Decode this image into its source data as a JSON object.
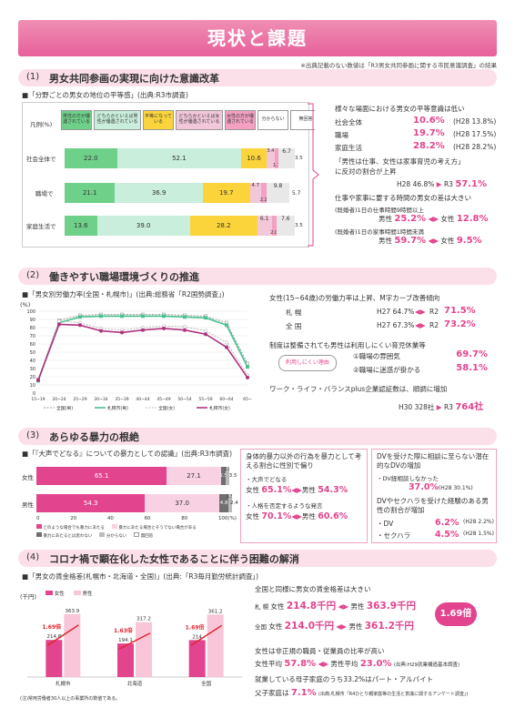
{
  "banner": "現状と課題",
  "source_note": "※出典記載のない数値は「R3男女共同参画に関する市民意識調査」の結果",
  "sec1": {
    "num": "(1)",
    "title": "男女共同参画の実現に向けた意識改革",
    "subtitle": "■「分野ごとの男女の地位の平等感」(出典:R3市調査)",
    "legend_label": "凡例(%)",
    "legend": [
      "男性の方が優遇されている",
      "どちらかといえば男性が優遇されている",
      "平等になっている",
      "どちらかといえば女性が優遇されている",
      "女性の方が優遇されている",
      "分からない",
      "無回答"
    ],
    "rows": [
      {
        "label": "社会全体で",
        "values": [
          "22.0",
          "52.1",
          "10.6",
          "3.4",
          "6.7",
          "1.7",
          "3.5"
        ]
      },
      {
        "label": "職場で",
        "values": [
          "21.1",
          "36.9",
          "19.7",
          "4.7",
          "9.8",
          "2.2",
          "5.7"
        ]
      },
      {
        "label": "家庭生活で",
        "values": [
          "13.6",
          "39.0",
          "28.2",
          "6.1",
          "7.6",
          "2.0",
          "3.5"
        ]
      }
    ],
    "side": {
      "h1": "様々な場面における男女の平等意識は低い",
      "items": [
        {
          "k": "社会全体",
          "v": "10.6%",
          "p": "(H28 13.8%)"
        },
        {
          "k": "職場",
          "v": "19.7%",
          "p": "(H28 17.5%)"
        },
        {
          "k": "家庭生活",
          "v": "28.2%",
          "p": "(H28 28.2%)"
        }
      ],
      "h2a": "「男性は仕事、女性は家事育児の考え方」",
      "h2b": "に反対の割合が上昇",
      "cmp": "H28 46.8%",
      "arrow": "▶",
      "r3": "R3",
      "r3v": "57.1%",
      "h3": "仕事や家事に要する時間の男女の差は大きい",
      "n1": "(既婚者)1日の仕事時間9時間以上",
      "m1": "男性",
      "mv1": "25.2%",
      "w1": "女性",
      "wv1": "12.8%",
      "n2": "(既婚者)1日の家事時間1時間未満",
      "m2": "男性",
      "mv2": "59.7%",
      "w2": "女性",
      "wv2": "9.5%"
    }
  },
  "sec2": {
    "num": "(2)",
    "title": "働きやすい職場環境づくりの推進",
    "subtitle": "■「男女別労働力率(全国・札幌市)」(出典:総務省「R2国勢調査」)",
    "unit": "(%)",
    "side": {
      "h1": "女性(15~64歳)の労働力率は上昇、M字カーブ改善傾向",
      "r1k": "札 幌",
      "r1a": "H27 64.7%",
      "r1b": "R2",
      "r1v": "71.5%",
      "r2k": "全 国",
      "r2a": "H27 67.3%",
      "r2b": "R2",
      "r2v": "73.2%",
      "h2": "制度は整備されても男性は利用しにくい育児休業等",
      "reason": "利用しにくい理由",
      "i1": "①職場の雰囲気",
      "v1": "69.7%",
      "i2": "②職場に迷惑が掛かる",
      "v2": "58.1%",
      "h3": "ワーク・ライフ・バランスplus企業認証数は、順調に増加",
      "r3a": "H30 328社",
      "r3b": "R3",
      "r3v": "764社"
    }
  },
  "sec3": {
    "num": "(3)",
    "title": "あらゆる暴力の根絶",
    "subtitle": "■「『大声でどなる』についての暴力としての認識」(出典:R3市調査)",
    "rows": [
      {
        "label": "女性",
        "values": [
          "65.1",
          "27.1",
          "2.5",
          "1.8",
          "3.5"
        ]
      },
      {
        "label": "男性",
        "values": [
          "54.3",
          "37.0",
          "4.8",
          "1.5",
          "2.4"
        ]
      }
    ],
    "ticks": [
      "0",
      "20",
      "40",
      "60",
      "80",
      "100(%)"
    ],
    "legend": [
      "どのような場合でも暴力にあたる",
      "暴力にあたる場合とそうでない場合がある",
      "暴力にあたるとは思わない",
      "分からない",
      "無回答"
    ],
    "side1": {
      "h": "身体的暴力以外の行為を暴力として考える割合に性別で偏り",
      "a": "・大声でどなる",
      "a1": "女性",
      "a1v": "65.1%",
      "a2": "男性",
      "a2v": "54.3%",
      "b": "・人格を否定するような発言",
      "b1": "女性",
      "b1v": "70.1%",
      "b2": "男性",
      "b2v": "60.6%"
    },
    "side2": {
      "h": "DVを受けた際に相談に至らない潜在的なDVの増加",
      "l": "・DV経相談しなかった",
      "v": "37.0%",
      "p": "(H28 30.1%)",
      "h2": "DVやセクハラを受けた経験のある男性の割合が増加",
      "l1": "・DV",
      "v1": "6.2%",
      "p1": "(H28 2.2%)",
      "l2": "・セクハラ",
      "v2": "4.5%",
      "p2": "(H28 1.5%)"
    }
  },
  "sec4": {
    "num": "(4)",
    "title": "コロナ禍で顕在化した女性であることに伴う困難の解消",
    "subtitle": "■「男女の賃金格差(札幌市・北海道・全国)」(出典:「R3毎月勤労統計調査」)",
    "unit": "(千円)",
    "legend": [
      "女性",
      "男性"
    ],
    "footnote": "(注)常用労働者30人以上の事業所の数値である。",
    "side": {
      "h1": "全国と同様に男女の賃金格差は大きい",
      "s": "札 幌",
      "sw": "女性",
      "swv": "214.8千円",
      "sm": "男性",
      "smv": "363.9千円",
      "z": "全国",
      "zw": "女性",
      "zwv": "214.0千円",
      "zm": "男性",
      "zmv": "361.2千円",
      "ratio": "1.69倍",
      "h2": "女性は非正規の職員・従業員の比率が高い",
      "f1": "女性平均",
      "f1v": "57.8%",
      "f2": "男性平均",
      "f2v": "23.0%",
      "fp": "(出典:H29就業構造基本調査)",
      "h3": "就業している母子家庭のうち33.2%はパート・アルバイト",
      "g1": "父子家庭は",
      "g1v": "7.1%",
      "gp": "(出典:札幌市「R4ひとり親家庭等の生活と意識に関するアンケート調査」)"
    }
  },
  "chart_data": [
    {
      "type": "line",
      "title": "男女別労働力率(全国・札幌市)",
      "x": [
        "15~19",
        "20~24",
        "25~29",
        "30~34",
        "35~39",
        "40~44",
        "45~49",
        "50~54",
        "55~59",
        "60~64",
        "65~"
      ],
      "ylim": [
        0,
        100
      ],
      "yticks": [
        "0",
        "10",
        "20",
        "30",
        "40",
        "50",
        "60",
        "70",
        "80",
        "90",
        "100"
      ],
      "series": [
        {
          "name": "全国(男)",
          "values": [
            17,
            89,
            95,
            96,
            96,
            96,
            96,
            95,
            94,
            86,
            36
          ]
        },
        {
          "name": "札幌市(男)",
          "values": [
            15,
            86,
            93,
            94,
            94,
            94,
            94,
            93,
            92,
            83,
            32
          ]
        },
        {
          "name": "全国(女)",
          "values": [
            17,
            88,
            86,
            79,
            77,
            80,
            82,
            81,
            76,
            62,
            22
          ]
        },
        {
          "name": "札幌市(女)",
          "values": [
            16,
            84,
            83,
            76,
            74,
            77,
            79,
            77,
            72,
            56,
            19
          ]
        }
      ]
    },
    {
      "type": "bar",
      "title": "男女の賃金格差(札幌市・北海道・全国)",
      "categories": [
        "札幌市",
        "北海道",
        "全国"
      ],
      "series": [
        {
          "name": "女性",
          "values": [
            214.8,
            194.1,
            214.0
          ]
        },
        {
          "name": "男性",
          "values": [
            363.9,
            317.2,
            361.2
          ]
        }
      ],
      "ratios": [
        "1.69倍",
        "1.63倍",
        "1.69倍"
      ],
      "ylim": [
        0,
        400
      ]
    }
  ]
}
